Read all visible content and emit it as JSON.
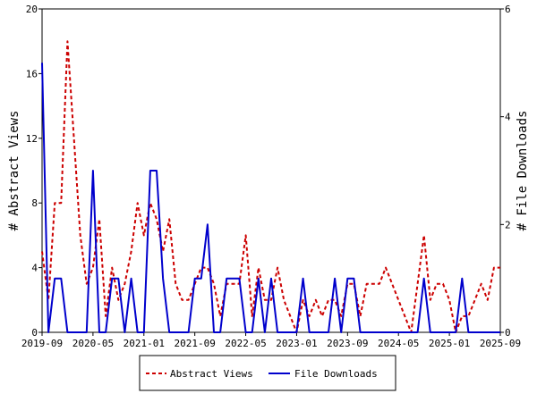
{
  "chart_data": {
    "type": "line",
    "ylabel_left": "# Abstract Views",
    "ylabel_right": "# File Downloads",
    "ylim_left": [
      0,
      20
    ],
    "ylim_right": [
      0,
      6
    ],
    "yticks_left": [
      0,
      4,
      8,
      12,
      16,
      20
    ],
    "yticks_right": [
      0,
      2,
      4,
      6
    ],
    "x_tick_labels": [
      "2019-09",
      "2020-05",
      "2021-01",
      "2021-09",
      "2022-05",
      "2023-01",
      "2023-09",
      "2024-05",
      "2025-01",
      "2025-09"
    ],
    "x_tick_positions": [
      0,
      8,
      16,
      24,
      32,
      40,
      48,
      56,
      64,
      72
    ],
    "grid": false,
    "legend_position": "bottom",
    "series": [
      {
        "name": "Abstract Views",
        "axis": "left",
        "color": "#cc0000",
        "dash": "dashed",
        "x": [
          0,
          1,
          2,
          3,
          4,
          5,
          6,
          7,
          8,
          9,
          10,
          11,
          12,
          13,
          14,
          15,
          16,
          17,
          18,
          19,
          20,
          21,
          22,
          23,
          24,
          25,
          26,
          27,
          28,
          29,
          30,
          31,
          32,
          33,
          34,
          35,
          36,
          37,
          38,
          39,
          40,
          41,
          42,
          43,
          44,
          45,
          46,
          47,
          48,
          49,
          50,
          51,
          52,
          53,
          54,
          55,
          56,
          57,
          58,
          59,
          60,
          61,
          62,
          63,
          64,
          65,
          66,
          67,
          68,
          69,
          70,
          71,
          72
        ],
        "values": [
          5,
          2,
          8,
          8,
          18,
          12,
          6,
          3,
          4,
          7,
          1,
          4,
          2,
          3,
          5,
          8,
          6,
          8,
          7,
          5,
          7,
          3,
          2,
          2,
          3,
          4,
          4,
          3,
          1,
          3,
          3,
          3,
          6,
          1,
          4,
          2,
          2,
          4,
          2,
          1,
          0,
          2,
          1,
          2,
          1,
          2,
          2,
          1,
          3,
          3,
          1,
          3,
          3,
          3,
          4,
          3,
          2,
          1,
          0,
          3,
          6,
          2,
          3,
          3,
          2,
          0,
          1,
          1,
          2,
          3,
          2,
          4,
          4
        ]
      },
      {
        "name": "File Downloads",
        "axis": "right",
        "color": "#0000cc",
        "dash": "solid",
        "x": [
          0,
          1,
          2,
          3,
          4,
          5,
          6,
          7,
          8,
          9,
          10,
          11,
          12,
          13,
          14,
          15,
          16,
          17,
          18,
          19,
          20,
          21,
          22,
          23,
          24,
          25,
          26,
          27,
          28,
          29,
          30,
          31,
          32,
          33,
          34,
          35,
          36,
          37,
          38,
          39,
          40,
          41,
          42,
          43,
          44,
          45,
          46,
          47,
          48,
          49,
          50,
          51,
          52,
          53,
          54,
          55,
          56,
          57,
          58,
          59,
          60,
          61,
          62,
          63,
          64,
          65,
          66,
          67,
          68,
          69,
          70,
          71,
          72
        ],
        "values": [
          5,
          0,
          1,
          1,
          0,
          0,
          0,
          0,
          3,
          0,
          0,
          1,
          1,
          0,
          1,
          0,
          0,
          3,
          3,
          1,
          0,
          0,
          0,
          0,
          1,
          1,
          2,
          0,
          0,
          1,
          1,
          1,
          0,
          0,
          1,
          0,
          1,
          0,
          0,
          0,
          0,
          1,
          0,
          0,
          0,
          0,
          1,
          0,
          1,
          1,
          0,
          0,
          0,
          0,
          0,
          0,
          0,
          0,
          0,
          0,
          1,
          0,
          0,
          0,
          0,
          0,
          1,
          0,
          0,
          0,
          0,
          0,
          0
        ]
      }
    ]
  }
}
